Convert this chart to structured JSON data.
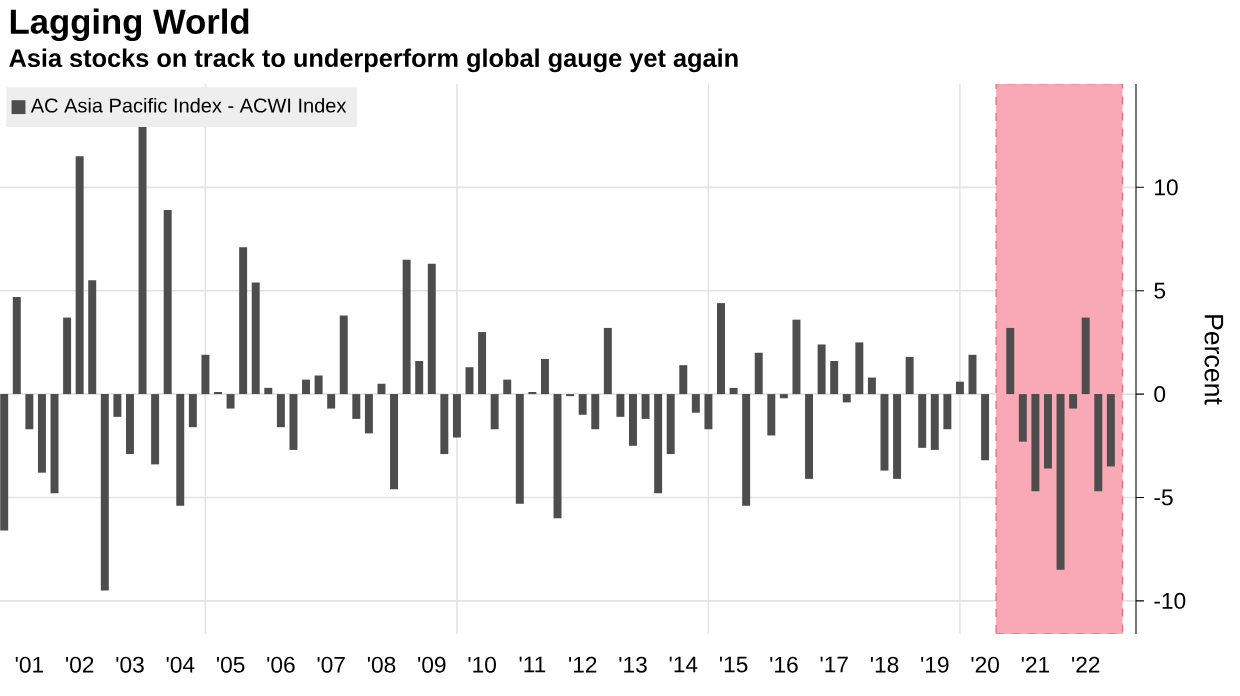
{
  "chart_data": {
    "type": "bar",
    "title": "Lagging World",
    "subtitle": "Asia stocks on track to underperform global gauge yet again",
    "ylabel": "Percent",
    "x": [
      "2001-01",
      "2001-04",
      "2001-07",
      "2001-10",
      "2002-01",
      "2002-04",
      "2002-07",
      "2002-10",
      "2003-01",
      "2003-04",
      "2003-07",
      "2003-10",
      "2004-01",
      "2004-04",
      "2004-07",
      "2004-10",
      "2005-01",
      "2005-04",
      "2005-07",
      "2005-10",
      "2006-01",
      "2006-04",
      "2006-07",
      "2006-10",
      "2007-01",
      "2007-04",
      "2007-07",
      "2007-10",
      "2008-01",
      "2008-04",
      "2008-07",
      "2008-10",
      "2009-01",
      "2009-04",
      "2009-07",
      "2009-10",
      "2010-01",
      "2010-04",
      "2010-07",
      "2010-10",
      "2011-01",
      "2011-04",
      "2011-07",
      "2011-10",
      "2012-01",
      "2012-04",
      "2012-07",
      "2012-10",
      "2013-01",
      "2013-04",
      "2013-07",
      "2013-10",
      "2014-01",
      "2014-04",
      "2014-07",
      "2014-10",
      "2015-01",
      "2015-04",
      "2015-07",
      "2015-10",
      "2016-01",
      "2016-04",
      "2016-07",
      "2016-10",
      "2017-01",
      "2017-04",
      "2017-07",
      "2017-10",
      "2018-01",
      "2018-04",
      "2018-07",
      "2018-10",
      "2019-01",
      "2019-04",
      "2019-07",
      "2019-10",
      "2020-01",
      "2020-04",
      "2020-07",
      "2020-10",
      "2021-01",
      "2021-04",
      "2021-07",
      "2021-10",
      "2022-01",
      "2022-04",
      "2022-07",
      "2022-10",
      "2023-01"
    ],
    "series": [
      {
        "name": "AC Asia Pacific Index - ACWI Index",
        "color": "#4d4d4d",
        "values": [
          -6.6,
          4.7,
          -1.7,
          -3.8,
          -4.8,
          3.7,
          11.5,
          5.5,
          -9.5,
          -1.1,
          -2.9,
          13.0,
          -3.4,
          8.9,
          -5.4,
          -1.6,
          1.9,
          0.1,
          -0.7,
          7.1,
          5.4,
          0.3,
          -1.6,
          -2.7,
          0.7,
          0.9,
          -0.7,
          3.8,
          -1.2,
          -1.9,
          0.5,
          -4.6,
          6.5,
          1.6,
          6.3,
          -2.9,
          -2.1,
          1.3,
          3.0,
          -1.7,
          0.7,
          -5.3,
          0.1,
          1.7,
          -6.0,
          -0.1,
          -1.0,
          -1.7,
          3.2,
          -1.1,
          -2.5,
          -1.2,
          -4.8,
          -2.9,
          1.4,
          -0.9,
          -1.7,
          4.4,
          0.3,
          -5.4,
          2.0,
          -2.0,
          -0.2,
          3.6,
          -4.1,
          2.4,
          1.6,
          -0.4,
          2.5,
          0.8,
          -3.7,
          -4.1,
          1.8,
          -2.6,
          -2.7,
          -1.7,
          0.6,
          1.9,
          -3.2,
          null,
          3.2,
          -2.3,
          -4.7,
          -3.6,
          -8.5,
          -0.7,
          3.7,
          -4.7,
          -3.5
        ]
      }
    ],
    "xlim": [
      "2000-12",
      "2023-07"
    ],
    "xticks": [
      {
        "value": "2001-07",
        "label": "'01"
      },
      {
        "value": "2002-07",
        "label": "'02"
      },
      {
        "value": "2003-07",
        "label": "'03"
      },
      {
        "value": "2004-07",
        "label": "'04"
      },
      {
        "value": "2005-07",
        "label": "'05"
      },
      {
        "value": "2006-07",
        "label": "'06"
      },
      {
        "value": "2007-07",
        "label": "'07"
      },
      {
        "value": "2008-07",
        "label": "'08"
      },
      {
        "value": "2009-07",
        "label": "'09"
      },
      {
        "value": "2010-07",
        "label": "'10"
      },
      {
        "value": "2011-07",
        "label": "'11"
      },
      {
        "value": "2012-07",
        "label": "'12"
      },
      {
        "value": "2013-07",
        "label": "'13"
      },
      {
        "value": "2014-07",
        "label": "'14"
      },
      {
        "value": "2015-07",
        "label": "'15"
      },
      {
        "value": "2016-07",
        "label": "'16"
      },
      {
        "value": "2017-07",
        "label": "'17"
      },
      {
        "value": "2018-07",
        "label": "'18"
      },
      {
        "value": "2019-07",
        "label": "'19"
      },
      {
        "value": "2020-07",
        "label": "'20"
      },
      {
        "value": "2021-07",
        "label": "'21"
      },
      {
        "value": "2022-07",
        "label": "'22"
      }
    ],
    "ylim": [
      -11.6,
      15
    ],
    "yticks": [
      -10,
      -5,
      0,
      5,
      10
    ],
    "grid": "y",
    "legend": "top left",
    "ref_lines": [
      {
        "axis": "x",
        "value": "2005-01",
        "color": "#e3e3e3"
      },
      {
        "axis": "x",
        "value": "2010-01",
        "color": "#e3e3e3"
      },
      {
        "axis": "x",
        "value": "2015-01",
        "color": "#e3e3e3"
      },
      {
        "axis": "x",
        "value": "2020-01",
        "color": "#e3e3e3"
      }
    ],
    "bands": [
      {
        "axis": "x",
        "from": "2020-09-20",
        "to": "2023-03-25",
        "color": "#f9a9b5"
      }
    ]
  }
}
